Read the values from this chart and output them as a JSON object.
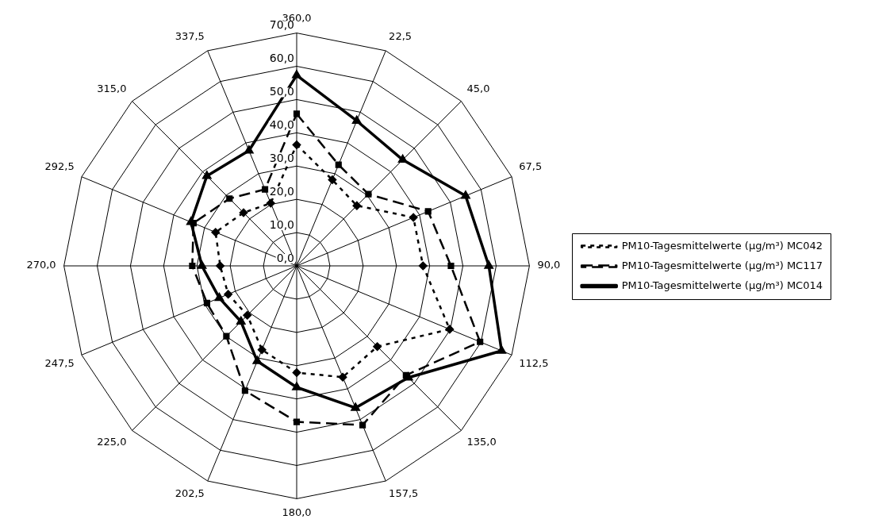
{
  "chart_data": {
    "type": "radar",
    "categories": [
      "360,0",
      "22,5",
      "45,0",
      "67,5",
      "90,0",
      "112,5",
      "135,0",
      "157,5",
      "180,0",
      "202,5",
      "225,0",
      "247,5",
      "270,0",
      "292,5",
      "315,0",
      "337,5"
    ],
    "ylim": [
      0,
      70
    ],
    "yticks": [
      {
        "value": 0,
        "label": "0,0"
      },
      {
        "value": 10,
        "label": "10,0"
      },
      {
        "value": 20,
        "label": "20,0"
      },
      {
        "value": 30,
        "label": "30,0"
      },
      {
        "value": 40,
        "label": "40,0"
      },
      {
        "value": 50,
        "label": "50,0"
      },
      {
        "value": 60,
        "label": "60,0"
      },
      {
        "value": 70,
        "label": "70,0"
      }
    ],
    "grid": true,
    "legend": "right",
    "series": [
      {
        "name": "PM10-Tagesmittelwerte (µg/m³) MC042",
        "color": "#000000",
        "marker": "diamond",
        "line_style": "dotted",
        "values": [
          36.4,
          28.0,
          25.6,
          38.0,
          38.0,
          49.8,
          34.3,
          36.2,
          32.1,
          27.3,
          21.0,
          22.3,
          23.0,
          26.4,
          22.6,
          20.4
        ]
      },
      {
        "name": "PM10-Tagesmittelwerte (µg/m³) MC117",
        "color": "#000000",
        "marker": "square",
        "line_style": "dashed",
        "values": [
          45.7,
          32.9,
          30.5,
          42.8,
          46.4,
          59.7,
          46.5,
          51.8,
          46.9,
          40.6,
          29.9,
          29.2,
          31.4,
          33.6,
          28.6,
          24.9
        ]
      },
      {
        "name": "PM10-Tagesmittelwerte (µg/m³) MC014",
        "color": "#000000",
        "marker": "triangle",
        "line_style": "solid",
        "values": [
          57.3,
          47.2,
          45.1,
          55.0,
          57.8,
          66.7,
          47.5,
          46.2,
          36.5,
          31.0,
          23.7,
          25.2,
          28.5,
          34.4,
          38.2,
          37.5
        ]
      }
    ]
  }
}
